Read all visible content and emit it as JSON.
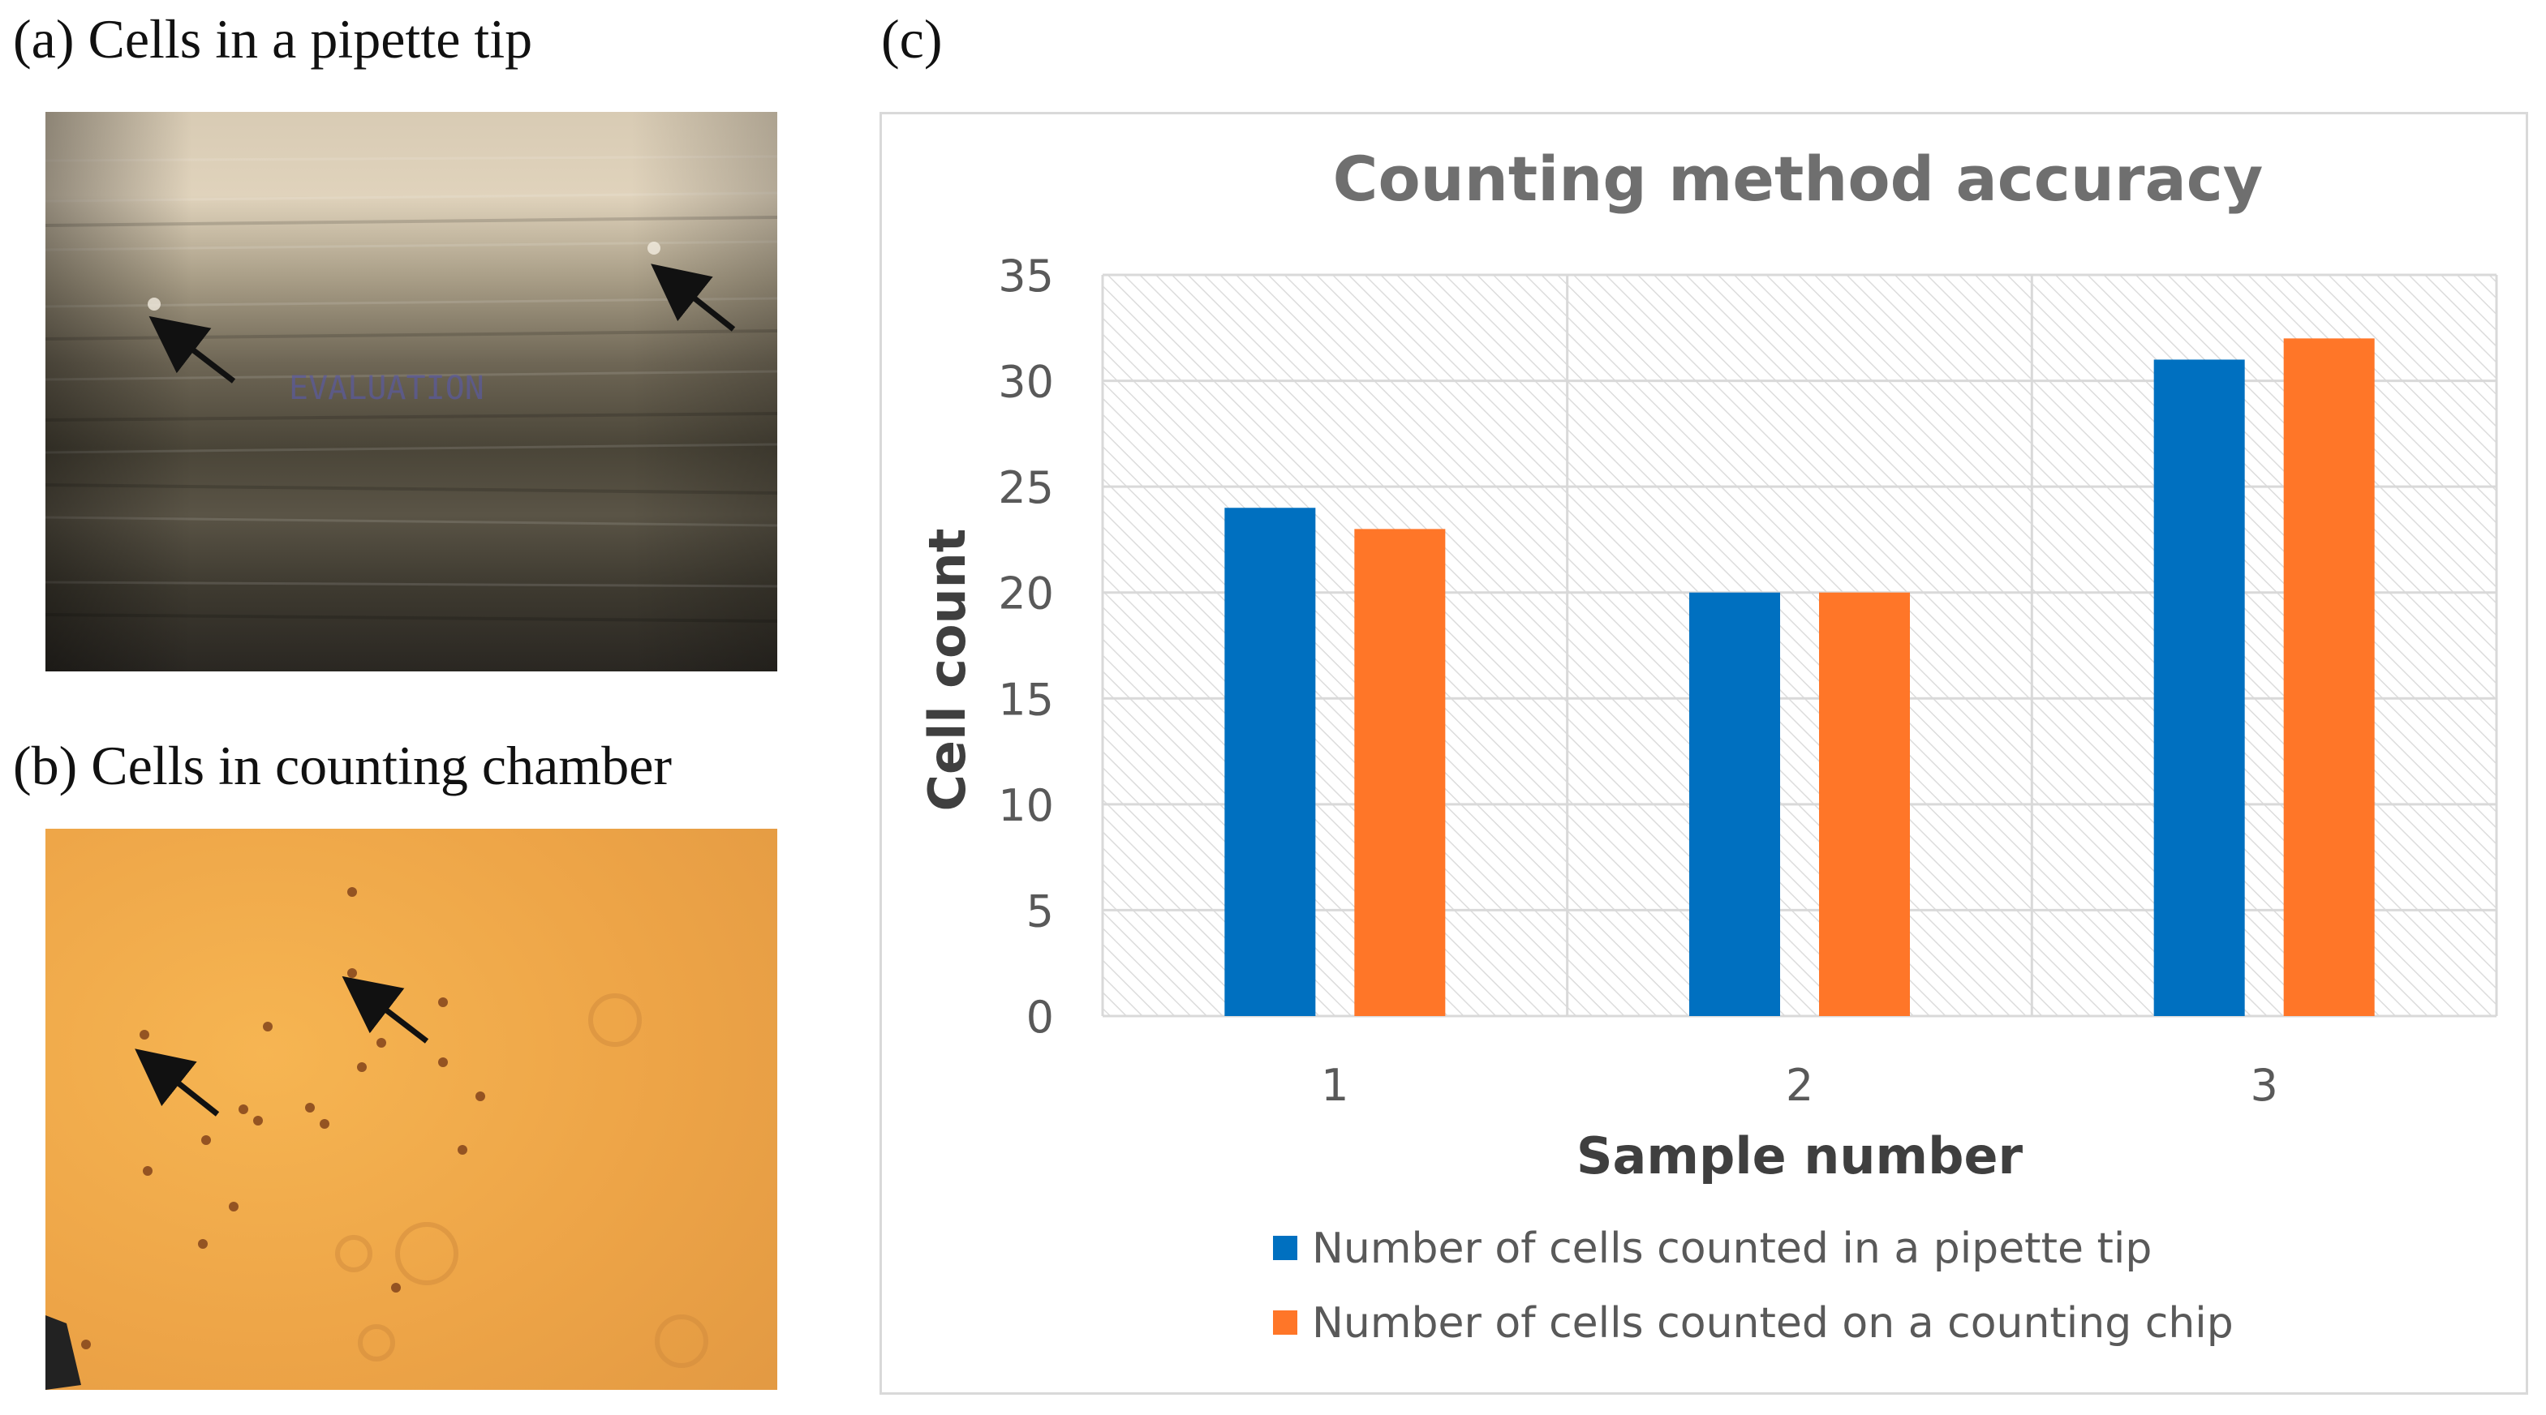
{
  "panels": {
    "a": {
      "label": "(a) Cells in a pipette tip",
      "watermark": "EVALUATION"
    },
    "b": {
      "label": "(b) Cells in counting chamber"
    },
    "c": {
      "label": "(c)"
    }
  },
  "colors": {
    "series_blue": "#0070c0",
    "series_orange": "#ff7628",
    "title_gray": "#6f6f6f",
    "axis_text": "#595959",
    "axis_title": "#3f3f3f"
  },
  "chart_data": {
    "type": "bar",
    "title": "Counting method accuracy",
    "xlabel": "Sample number",
    "ylabel": "Cell count",
    "categories": [
      "1",
      "2",
      "3"
    ],
    "ylim": [
      0,
      35
    ],
    "yticks": [
      "0",
      "5",
      "10",
      "15",
      "20",
      "25",
      "30",
      "35"
    ],
    "grid": true,
    "legend_position": "bottom",
    "series": [
      {
        "name": "Number of cells counted in a pipette tip",
        "values": [
          24,
          20,
          31
        ],
        "color": "#0070c0"
      },
      {
        "name": "Number of cells counted on a counting chip",
        "values": [
          23,
          20,
          32
        ],
        "color": "#ff7628"
      }
    ]
  }
}
